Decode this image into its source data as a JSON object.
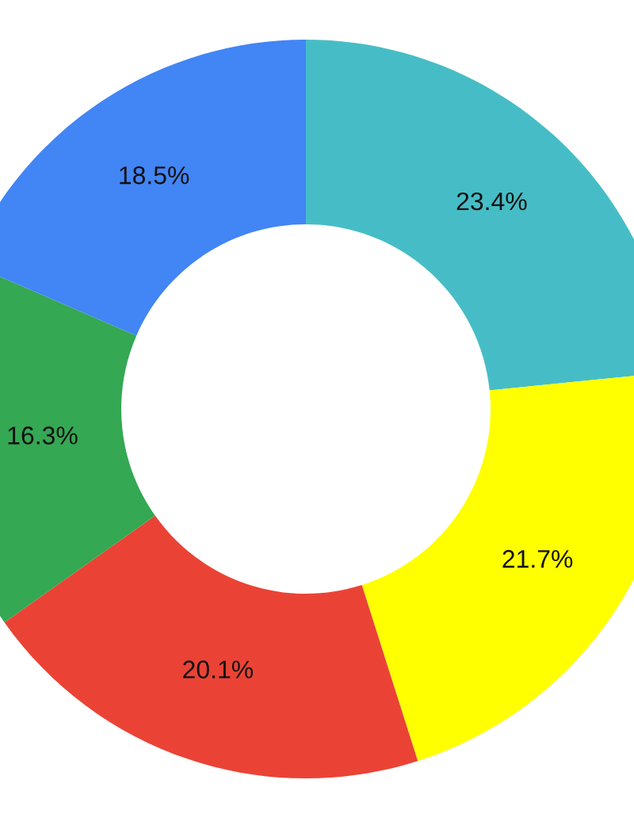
{
  "chart_data": {
    "type": "donut",
    "categories": [
      null,
      null,
      null,
      null,
      null
    ],
    "values": [
      23.4,
      21.7,
      20.1,
      16.3,
      18.5
    ],
    "colors": [
      "#46bdc6",
      "#ffff00",
      "#ea4335",
      "#34a853",
      "#4285f4"
    ],
    "value_labels": [
      "23.4%",
      "21.7%",
      "20.1%",
      "16.3%",
      "18.5%"
    ]
  }
}
